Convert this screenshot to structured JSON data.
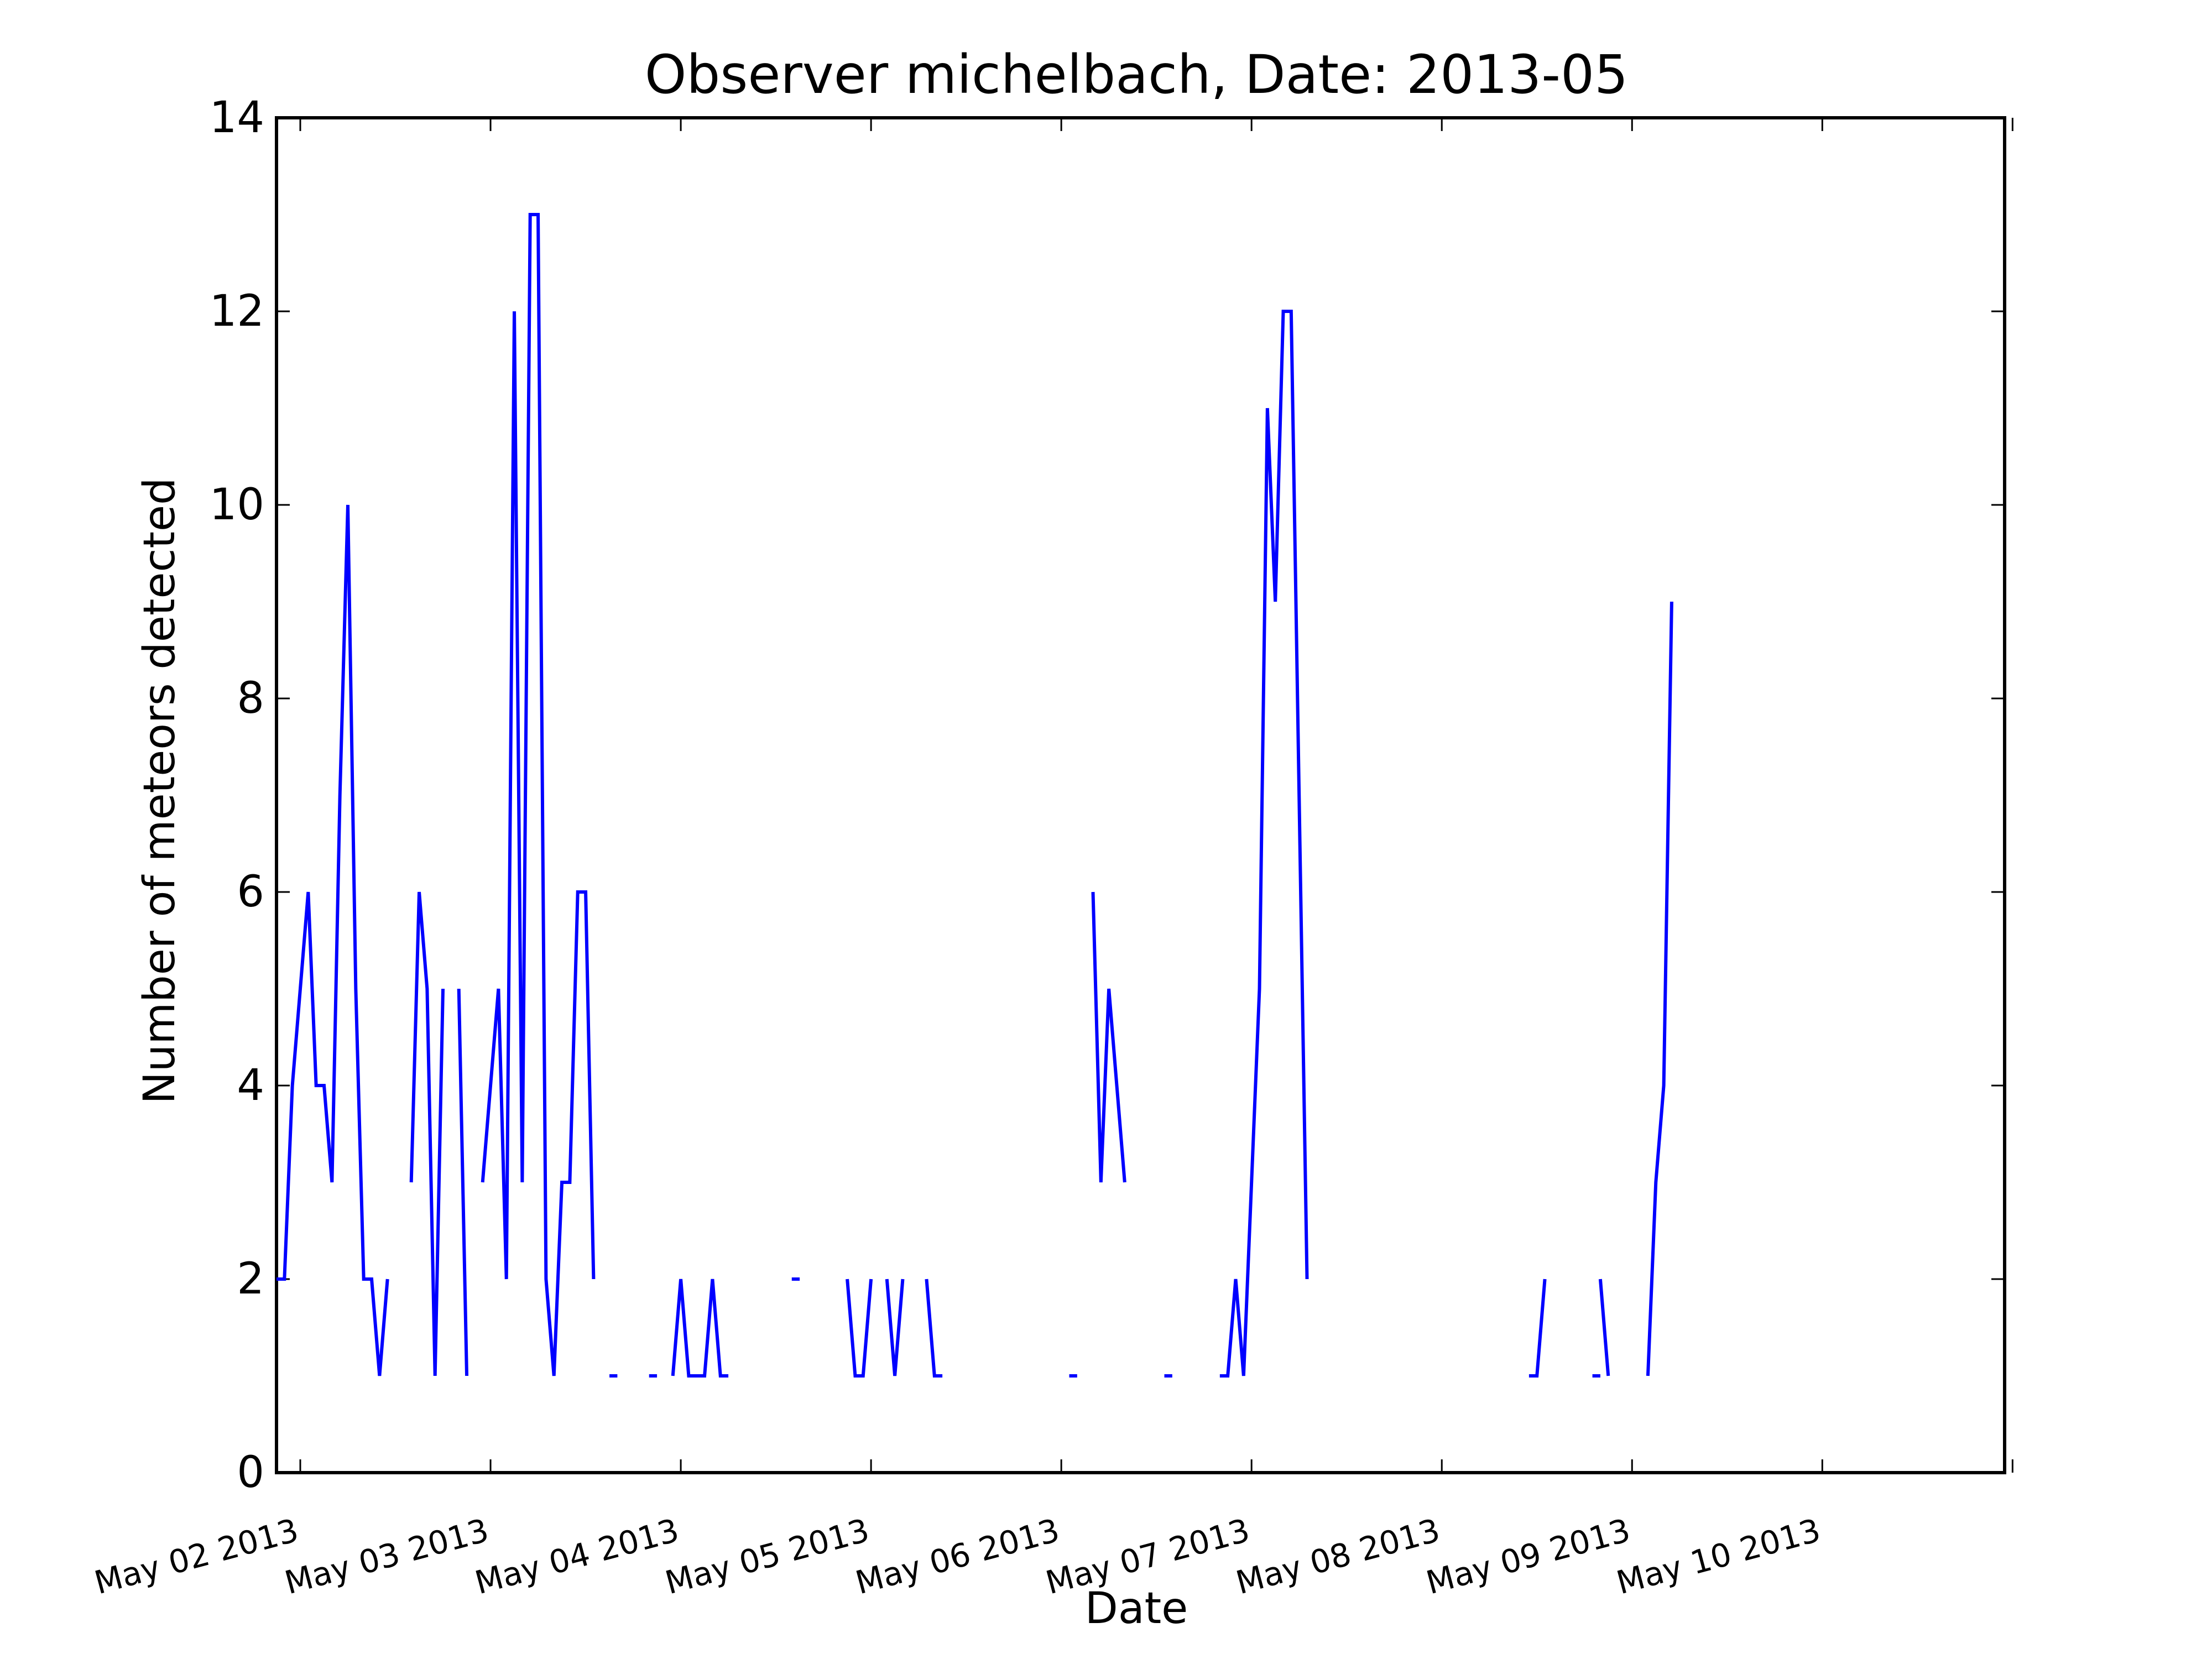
{
  "chart_data": {
    "type": "line",
    "title": "Observer michelbach, Date: 2013-05",
    "xlabel": "Date",
    "ylabel": "Number of meteors detected",
    "xlim": [
      "2013-05-01T21:00",
      "2013-05-10T23:00"
    ],
    "ylim": [
      0,
      14
    ],
    "x_ticks": [
      "2013-05-02",
      "2013-05-03",
      "2013-05-04",
      "2013-05-05",
      "2013-05-06",
      "2013-05-07",
      "2013-05-08",
      "2013-05-09",
      "2013-05-10",
      "2013-05-11"
    ],
    "x_tick_labels": [
      "May 02 2013",
      "May 03 2013",
      "May 04 2013",
      "May 05 2013",
      "May 06 2013",
      "May 07 2013",
      "May 08 2013",
      "May 09 2013",
      "May 10 2013"
    ],
    "y_ticks": [
      0,
      2,
      4,
      6,
      8,
      10,
      12,
      14
    ],
    "y_tick_labels": [
      "0",
      "2",
      "4",
      "6",
      "8",
      "10",
      "12",
      "14"
    ],
    "grid": false,
    "series_color": "#0000ff",
    "series": [
      {
        "segments": [
          {
            "x": [
              "2013-05-01T21:00",
              "2013-05-01T22:00",
              "2013-05-01T23:00",
              "2013-05-02T00:00",
              "2013-05-02T01:00",
              "2013-05-02T02:00",
              "2013-05-02T03:00",
              "2013-05-02T04:00",
              "2013-05-02T05:00",
              "2013-05-02T06:00",
              "2013-05-02T07:00",
              "2013-05-02T08:00",
              "2013-05-02T09:00",
              "2013-05-02T10:00",
              "2013-05-02T11:00",
              "2013-05-02T12:00"
            ],
            "y": [
              2,
              2,
              4,
              5,
              6,
              4,
              4,
              3,
              7,
              10,
              5,
              2,
              2,
              1,
              2,
              null
            ]
          },
          {
            "x": [
              "2013-05-02T14:00",
              "2013-05-02T15:00",
              "2013-05-02T16:00",
              "2013-05-02T17:00",
              "2013-05-02T18:00",
              "2013-05-02T19:00"
            ],
            "y": [
              3,
              6,
              5,
              1,
              5,
              null
            ]
          },
          {
            "x": [
              "2013-05-02T20:00",
              "2013-05-02T21:00"
            ],
            "y": [
              5,
              1
            ]
          },
          {
            "x": [
              "2013-05-02T23:00",
              "2013-05-03T00:00",
              "2013-05-03T01:00",
              "2013-05-03T02:00",
              "2013-05-03T03:00",
              "2013-05-03T04:00",
              "2013-05-03T05:00",
              "2013-05-03T06:00",
              "2013-05-03T07:00",
              "2013-05-03T08:00",
              "2013-05-03T09:00",
              "2013-05-03T10:00",
              "2013-05-03T11:00",
              "2013-05-03T12:00",
              "2013-05-03T13:00",
              "2013-05-03T14:00"
            ],
            "y": [
              3,
              4,
              5,
              2,
              12,
              3,
              13,
              13,
              2,
              1,
              3,
              3,
              6,
              6,
              2,
              null
            ]
          },
          {
            "x": [
              "2013-05-03T15:00",
              "2013-05-03T16:00"
            ],
            "y": [
              1,
              1
            ]
          },
          {
            "x": [
              "2013-05-03T20:00",
              "2013-05-03T21:00"
            ],
            "y": [
              1,
              1
            ]
          },
          {
            "x": [
              "2013-05-03T23:00",
              "2013-05-04T00:00",
              "2013-05-04T01:00",
              "2013-05-04T02:00",
              "2013-05-04T03:00",
              "2013-05-04T04:00",
              "2013-05-04T05:00",
              "2013-05-04T06:00"
            ],
            "y": [
              1,
              2,
              1,
              1,
              1,
              2,
              1,
              1
            ]
          },
          {
            "x": [
              "2013-05-04T14:00",
              "2013-05-04T15:00"
            ],
            "y": [
              2,
              2
            ]
          },
          {
            "x": [
              "2013-05-04T21:00",
              "2013-05-04T22:00",
              "2013-05-04T23:00",
              "2013-05-05T00:00"
            ],
            "y": [
              2,
              1,
              1,
              2
            ]
          },
          {
            "x": [
              "2013-05-05T02:00",
              "2013-05-05T03:00",
              "2013-05-05T04:00"
            ],
            "y": [
              2,
              1,
              2
            ]
          },
          {
            "x": [
              "2013-05-05T07:00",
              "2013-05-05T08:00",
              "2013-05-05T09:00"
            ],
            "y": [
              2,
              1,
              1
            ]
          },
          {
            "x": [
              "2013-05-06T01:00",
              "2013-05-06T02:00"
            ],
            "y": [
              1,
              1
            ]
          },
          {
            "x": [
              "2013-05-06T04:00",
              "2013-05-06T05:00",
              "2013-05-06T06:00",
              "2013-05-06T07:00",
              "2013-05-06T08:00"
            ],
            "y": [
              6,
              3,
              5,
              4,
              3
            ]
          },
          {
            "x": [
              "2013-05-06T13:00",
              "2013-05-06T14:00"
            ],
            "y": [
              1,
              1
            ]
          },
          {
            "x": [
              "2013-05-06T20:00",
              "2013-05-06T21:00",
              "2013-05-06T22:00",
              "2013-05-06T23:00",
              "2013-05-07T00:00",
              "2013-05-07T01:00",
              "2013-05-07T02:00",
              "2013-05-07T03:00",
              "2013-05-07T04:00",
              "2013-05-07T05:00",
              "2013-05-07T06:00",
              "2013-05-07T07:00",
              "2013-05-07T08:00",
              "2013-05-07T09:00",
              "2013-05-07T10:00"
            ],
            "y": [
              1,
              1,
              2,
              1,
              3,
              5,
              11,
              9,
              12,
              12,
              7,
              2,
              null,
              null,
              null
            ]
          },
          {
            "x": [
              "2013-05-08T11:00",
              "2013-05-08T12:00",
              "2013-05-08T13:00"
            ],
            "y": [
              1,
              1,
              2
            ]
          },
          {
            "x": [
              "2013-05-08T19:00",
              "2013-05-08T20:00"
            ],
            "y": [
              1,
              1
            ]
          },
          {
            "x": [
              "2013-05-08T20:00",
              "2013-05-08T21:00"
            ],
            "y": [
              2,
              1
            ]
          },
          {
            "x": [
              "2013-05-09T02:00",
              "2013-05-09T03:00",
              "2013-05-09T04:00",
              "2013-05-09T05:00"
            ],
            "y": [
              1,
              3,
              4,
              9
            ]
          }
        ]
      }
    ]
  }
}
